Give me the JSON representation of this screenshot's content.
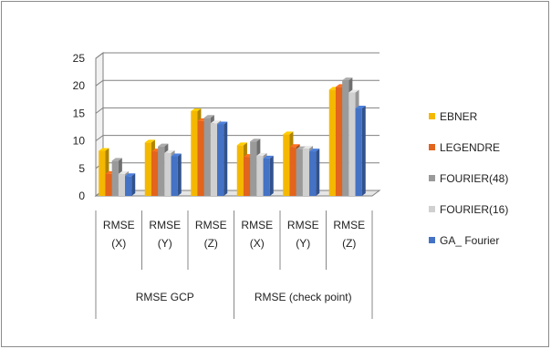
{
  "chart_data": {
    "type": "bar",
    "style": "3d-clustered-column",
    "ylim": [
      0,
      25
    ],
    "yticks": [
      "0",
      "5",
      "10",
      "15",
      "20",
      "25"
    ],
    "categories": [
      {
        "line1": "RMSE",
        "line2": "(X)"
      },
      {
        "line1": "RMSE",
        "line2": "(Y)"
      },
      {
        "line1": "RMSE",
        "line2": "(Z)"
      },
      {
        "line1": "RMSE",
        "line2": "(X)"
      },
      {
        "line1": "RMSE",
        "line2": "(Y)"
      },
      {
        "line1": "RMSE",
        "line2": "(Z)"
      }
    ],
    "groups": [
      {
        "label": "RMSE GCP",
        "span": 3
      },
      {
        "label": "RMSE (check point)",
        "span": 3
      }
    ],
    "series": [
      {
        "name": "EBNER",
        "color": "#f5b800",
        "values": [
          8.2,
          9.7,
          15.4,
          9.2,
          11.2,
          19.3
        ]
      },
      {
        "name": "LEGENDRE",
        "color": "#e2641d",
        "values": [
          4.0,
          8.1,
          13.6,
          7.1,
          8.9,
          19.8
        ]
      },
      {
        "name": "FOURIER(48)",
        "color": "#9a9a9a",
        "values": [
          6.4,
          9.0,
          14.2,
          9.9,
          8.5,
          21.0
        ]
      },
      {
        "name": "FOURIER(16)",
        "color": "#d0d0d0",
        "values": [
          4.0,
          7.8,
          13.2,
          7.3,
          8.6,
          18.8
        ]
      },
      {
        "name": "GA_ Fourier",
        "color": "#4472c4",
        "values": [
          3.6,
          7.2,
          13.0,
          6.8,
          8.1,
          15.9
        ]
      }
    ],
    "legend_position": "right",
    "grid": true
  }
}
